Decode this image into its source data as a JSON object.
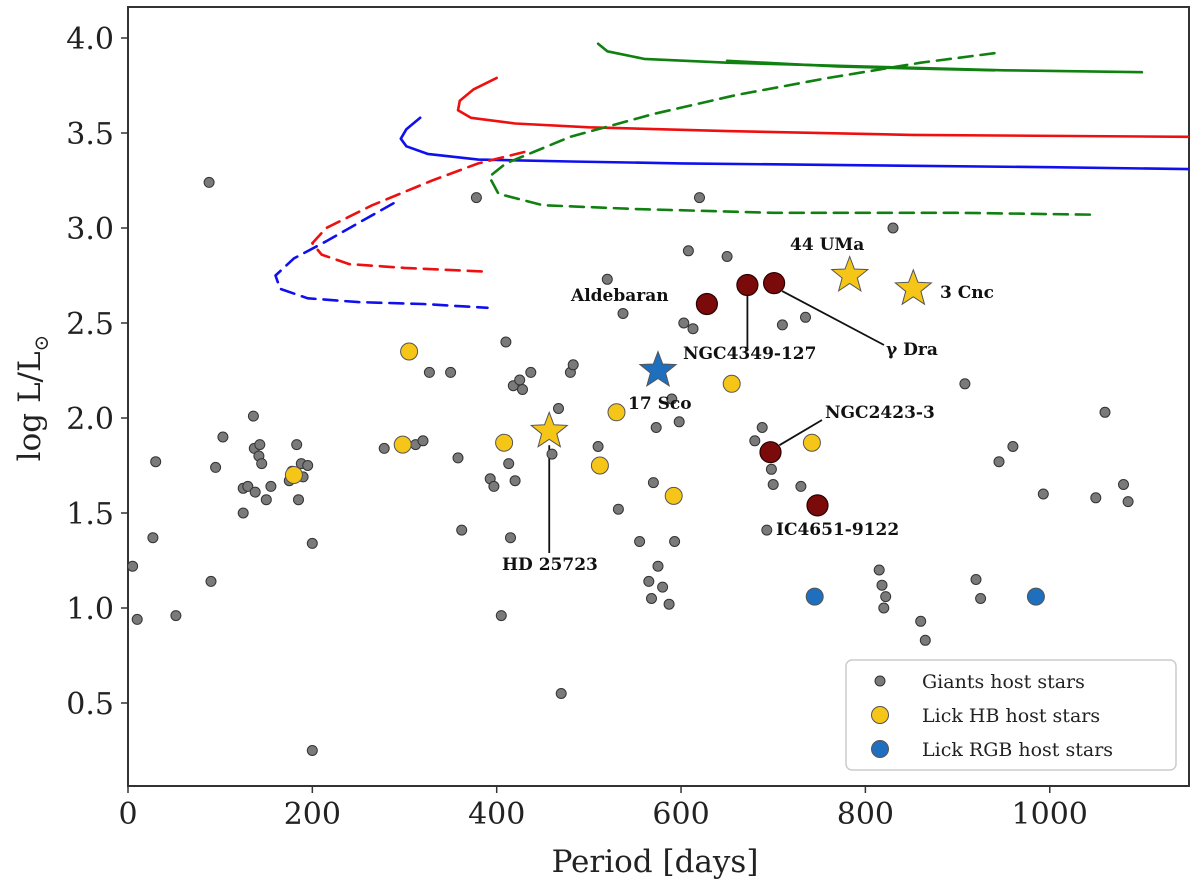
{
  "chart_data": {
    "type": "scatter",
    "title": "",
    "xlabel": "Period [days]",
    "ylabel_main": "log L/L",
    "ylabel_sub": "⊙",
    "xlim": [
      0,
      1150
    ],
    "ylim": [
      0.1,
      4.15
    ],
    "xticks": [
      0,
      200,
      400,
      600,
      800,
      1000
    ],
    "yticks": [
      0.5,
      1.0,
      1.5,
      2.0,
      2.5,
      3.0,
      3.5,
      4.0
    ],
    "xtick_labels": [
      "0",
      "200",
      "400",
      "600",
      "800",
      "1000"
    ],
    "ytick_labels": [
      "0.5",
      "1.0",
      "1.5",
      "2.0",
      "2.5",
      "3.0",
      "3.5",
      "4.0"
    ],
    "grid": false,
    "legend_position": "bottom-right",
    "colors": {
      "giants": "#7a7a7a",
      "lick_hb": "#f5c518",
      "lick_rgb": "#1f6fbf",
      "special": "#7b0b0b",
      "star_gold": "#f5c518",
      "star_blue": "#1f6fbf",
      "track_blue": "#1010ee",
      "track_red": "#ee1010",
      "track_green": "#108010"
    },
    "legend": [
      {
        "label": "Giants host stars",
        "series": "giants"
      },
      {
        "label": "Lick HB host stars",
        "series": "lick_hb"
      },
      {
        "label": "Lick RGB host stars",
        "series": "lick_rgb"
      }
    ],
    "series": [
      {
        "name": "Giants host stars",
        "key": "giants",
        "points": [
          [
            5,
            1.22
          ],
          [
            10,
            0.94
          ],
          [
            27,
            1.37
          ],
          [
            30,
            1.77
          ],
          [
            52,
            0.96
          ],
          [
            88,
            3.24
          ],
          [
            90,
            1.14
          ],
          [
            95,
            1.74
          ],
          [
            103,
            1.9
          ],
          [
            125,
            1.5
          ],
          [
            125,
            1.63
          ],
          [
            130,
            1.64
          ],
          [
            136,
            2.01
          ],
          [
            137,
            1.84
          ],
          [
            138,
            1.61
          ],
          [
            142,
            1.8
          ],
          [
            143,
            1.86
          ],
          [
            145,
            1.76
          ],
          [
            150,
            1.57
          ],
          [
            155,
            1.64
          ],
          [
            175,
            1.67
          ],
          [
            178,
            1.72
          ],
          [
            183,
            1.86
          ],
          [
            185,
            1.57
          ],
          [
            188,
            1.76
          ],
          [
            190,
            1.69
          ],
          [
            195,
            1.75
          ],
          [
            200,
            1.34
          ],
          [
            200,
            0.25
          ],
          [
            278,
            1.84
          ],
          [
            312,
            1.86
          ],
          [
            320,
            1.88
          ],
          [
            327,
            2.24
          ],
          [
            350,
            2.24
          ],
          [
            358,
            1.79
          ],
          [
            362,
            1.41
          ],
          [
            378,
            3.16
          ],
          [
            393,
            1.68
          ],
          [
            397,
            1.64
          ],
          [
            405,
            0.96
          ],
          [
            410,
            2.4
          ],
          [
            413,
            1.76
          ],
          [
            415,
            1.37
          ],
          [
            418,
            2.17
          ],
          [
            420,
            1.67
          ],
          [
            425,
            2.2
          ],
          [
            428,
            2.15
          ],
          [
            437,
            2.24
          ],
          [
            460,
            1.81
          ],
          [
            467,
            2.05
          ],
          [
            470,
            0.55
          ],
          [
            480,
            2.24
          ],
          [
            483,
            2.28
          ],
          [
            510,
            1.85
          ],
          [
            520,
            2.73
          ],
          [
            532,
            1.52
          ],
          [
            537,
            2.55
          ],
          [
            555,
            1.35
          ],
          [
            565,
            1.14
          ],
          [
            568,
            1.05
          ],
          [
            570,
            1.66
          ],
          [
            573,
            1.95
          ],
          [
            575,
            1.22
          ],
          [
            580,
            1.11
          ],
          [
            587,
            1.02
          ],
          [
            590,
            2.1
          ],
          [
            593,
            1.35
          ],
          [
            598,
            1.98
          ],
          [
            603,
            2.5
          ],
          [
            608,
            2.88
          ],
          [
            613,
            2.47
          ],
          [
            620,
            3.16
          ],
          [
            650,
            2.85
          ],
          [
            680,
            1.88
          ],
          [
            688,
            1.95
          ],
          [
            693,
            1.41
          ],
          [
            698,
            1.73
          ],
          [
            700,
            1.65
          ],
          [
            710,
            2.49
          ],
          [
            730,
            1.64
          ],
          [
            735,
            2.53
          ],
          [
            815,
            1.2
          ],
          [
            818,
            1.12
          ],
          [
            820,
            1.0
          ],
          [
            822,
            1.06
          ],
          [
            830,
            3.0
          ],
          [
            860,
            0.93
          ],
          [
            865,
            0.83
          ],
          [
            908,
            2.18
          ],
          [
            920,
            1.15
          ],
          [
            925,
            1.05
          ],
          [
            945,
            1.77
          ],
          [
            960,
            1.85
          ],
          [
            993,
            1.6
          ],
          [
            1050,
            1.58
          ],
          [
            1060,
            2.03
          ],
          [
            1080,
            1.65
          ],
          [
            1085,
            1.56
          ]
        ]
      },
      {
        "name": "Lick HB host stars",
        "key": "lick_hb",
        "points": [
          [
            180,
            1.7
          ],
          [
            298,
            1.86
          ],
          [
            305,
            2.35
          ],
          [
            408,
            1.87
          ],
          [
            512,
            1.75
          ],
          [
            530,
            2.03
          ],
          [
            592,
            1.59
          ],
          [
            655,
            2.18
          ],
          [
            742,
            1.87
          ]
        ]
      },
      {
        "name": "Lick RGB host stars",
        "key": "lick_rgb",
        "points": [
          [
            745,
            1.06
          ],
          [
            985,
            1.06
          ]
        ]
      }
    ],
    "special_points": [
      {
        "name": "Aldebaran",
        "x": 628,
        "y": 2.6
      },
      {
        "name": "NGC4349-127",
        "x": 672,
        "y": 2.7
      },
      {
        "name": "γ Dra",
        "x": 701,
        "y": 2.71
      },
      {
        "name": "NGC2423-3",
        "x": 697,
        "y": 1.82
      },
      {
        "name": "IC4651-9122",
        "x": 748,
        "y": 1.54
      }
    ],
    "stars": [
      {
        "name": "44 UMa",
        "x": 783,
        "y": 2.75,
        "color": "gold"
      },
      {
        "name": "3 Cnc",
        "x": 852,
        "y": 2.68,
        "color": "gold"
      },
      {
        "name": "HD 25723",
        "x": 457,
        "y": 1.93,
        "color": "gold"
      },
      {
        "name": "17 Sco",
        "x": 575,
        "y": 2.25,
        "color": "blue"
      }
    ],
    "annotations": {
      "44 UMa": "44 UMa",
      "3 Cnc": "3 Cnc",
      "Aldebaran": "Aldebaran",
      "NGC4349-127": "NGC4349-127",
      "gamma_dra": "γ Dra",
      "17 Sco": "17 Sco",
      "NGC2423-3": "NGC2423-3",
      "IC4651-9122": "IC4651-9122",
      "HD 25723": "HD 25723"
    },
    "tracks": [
      {
        "name": "blue-solid",
        "color": "track_blue",
        "dashed": false,
        "points": [
          [
            317,
            3.58
          ],
          [
            302,
            3.52
          ],
          [
            296,
            3.47
          ],
          [
            302,
            3.43
          ],
          [
            325,
            3.39
          ],
          [
            380,
            3.36
          ],
          [
            480,
            3.35
          ],
          [
            600,
            3.34
          ],
          [
            800,
            3.33
          ],
          [
            1000,
            3.32
          ],
          [
            1150,
            3.31
          ]
        ]
      },
      {
        "name": "blue-dashed",
        "color": "track_blue",
        "dashed": true,
        "points": [
          [
            288,
            3.13
          ],
          [
            255,
            3.04
          ],
          [
            215,
            2.93
          ],
          [
            180,
            2.84
          ],
          [
            160,
            2.75
          ],
          [
            165,
            2.68
          ],
          [
            195,
            2.63
          ],
          [
            250,
            2.61
          ],
          [
            320,
            2.6
          ],
          [
            390,
            2.58
          ]
        ]
      },
      {
        "name": "red-solid",
        "color": "track_red",
        "dashed": false,
        "points": [
          [
            400,
            3.79
          ],
          [
            375,
            3.73
          ],
          [
            360,
            3.67
          ],
          [
            358,
            3.62
          ],
          [
            372,
            3.58
          ],
          [
            420,
            3.55
          ],
          [
            500,
            3.53
          ],
          [
            650,
            3.51
          ],
          [
            850,
            3.49
          ],
          [
            1150,
            3.48
          ]
        ]
      },
      {
        "name": "red-dashed",
        "color": "track_red",
        "dashed": true,
        "points": [
          [
            430,
            3.4
          ],
          [
            380,
            3.34
          ],
          [
            330,
            3.25
          ],
          [
            265,
            3.12
          ],
          [
            215,
            3.0
          ],
          [
            200,
            2.92
          ],
          [
            210,
            2.86
          ],
          [
            240,
            2.81
          ],
          [
            300,
            2.79
          ],
          [
            390,
            2.77
          ]
        ]
      },
      {
        "name": "green-solid",
        "color": "track_green",
        "dashed": false,
        "points": [
          [
            510,
            3.97
          ],
          [
            520,
            3.93
          ],
          [
            560,
            3.89
          ],
          [
            650,
            3.87
          ],
          [
            800,
            3.85
          ],
          [
            950,
            3.83
          ],
          [
            1100,
            3.82
          ]
        ]
      },
      {
        "name": "green-solid-2",
        "color": "track_green",
        "dashed": false,
        "points": [
          [
            650,
            3.88
          ],
          [
            770,
            3.85
          ],
          [
            850,
            3.84
          ],
          [
            940,
            3.83
          ]
        ]
      },
      {
        "name": "green-dashed",
        "color": "track_green",
        "dashed": true,
        "points": [
          [
            940,
            3.92
          ],
          [
            860,
            3.87
          ],
          [
            760,
            3.79
          ],
          [
            660,
            3.7
          ],
          [
            570,
            3.6
          ],
          [
            480,
            3.48
          ],
          [
            410,
            3.34
          ],
          [
            392,
            3.27
          ],
          [
            402,
            3.18
          ],
          [
            450,
            3.12
          ],
          [
            550,
            3.1
          ],
          [
            700,
            3.08
          ],
          [
            900,
            3.08
          ],
          [
            1050,
            3.07
          ]
        ]
      }
    ]
  }
}
